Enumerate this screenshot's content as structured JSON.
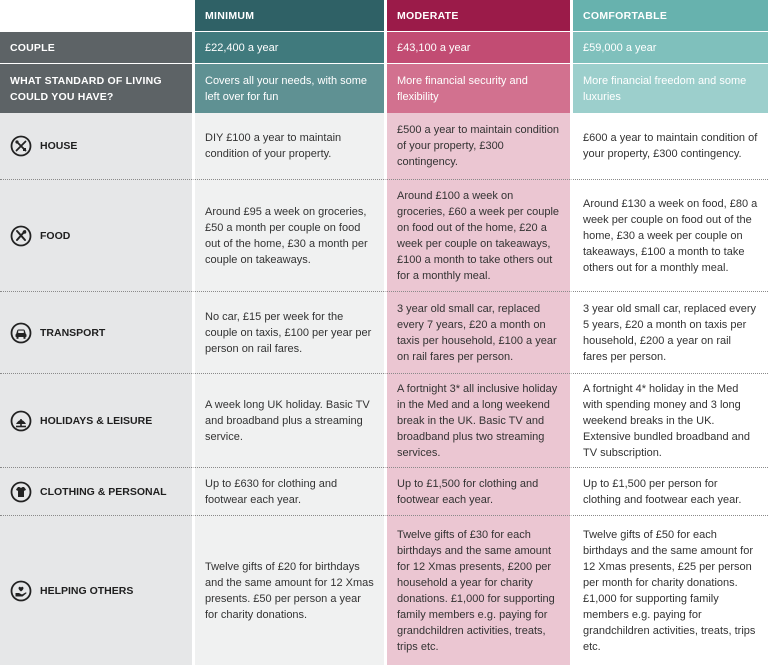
{
  "headers": {
    "minimum": "MINIMUM",
    "moderate": "MODERATE",
    "comfortable": "COMFORTABLE"
  },
  "couple": {
    "label": "COUPLE",
    "minimum": "£22,400 a year",
    "moderate": "£43,100 a year",
    "comfortable": "£59,000 a year"
  },
  "standard": {
    "label_line1": "WHAT STANDARD OF LIVING",
    "label_line2": "COULD YOU HAVE?",
    "minimum": "Covers all your needs, with some left over for fun",
    "moderate": "More financial security and flexibility",
    "comfortable": "More financial freedom and some luxuries"
  },
  "rows": [
    {
      "label": "HOUSE",
      "icon": "house-tools-icon",
      "minimum": "DIY £100 a year to maintain condition of your property.",
      "moderate": "£500 a year to maintain condition of your property, £300 contingency.",
      "comfortable": "£600 a year to maintain condition of your property, £300 contingency."
    },
    {
      "label": "FOOD",
      "icon": "cutlery-icon",
      "minimum": "Around £95 a week on groceries, £50 a month per couple on food out of the home, £30 a month per couple on takeaways.",
      "moderate": "Around £100 a week on groceries, £60 a week per couple on food out of the home, £20 a week per couple on takeaways, £100 a month to take others out for a monthly meal.",
      "comfortable": "Around £130 a week on food, £80 a week per couple on food out of the home, £30 a week per couple on takeaways, £100 a month to take others out for a monthly meal."
    },
    {
      "label": "TRANSPORT",
      "icon": "car-icon",
      "minimum": "No car, £15 per week for the couple on taxis, £100 per year per person on rail fares.",
      "moderate": "3 year old small car, replaced every 7 years, £20 a month on taxis per household, £100 a year on rail fares per person.",
      "comfortable": "3 year old small car, replaced every 5 years, £20 a month on taxis per household, £200 a year on rail fares per person."
    },
    {
      "label": "HOLIDAYS & LEISURE",
      "icon": "holiday-icon",
      "minimum": "A week long UK holiday. Basic TV and broadband plus a streaming service.",
      "moderate": "A fortnight 3* all inclusive holiday in the Med and a long weekend break in the UK. Basic TV and broadband plus two streaming services.",
      "comfortable": "A fortnight 4* holiday in the Med with spending money and 3 long weekend breaks in the UK. Extensive bundled broadband and TV subscription."
    },
    {
      "label": "CLOTHING & PERSONAL",
      "icon": "clothing-icon",
      "minimum": "Up to £630 for clothing and footwear each year.",
      "moderate": "Up to £1,500 for clothing and footwear each year.",
      "comfortable": "Up to £1,500 per person for clothing and footwear each year."
    },
    {
      "label": "HELPING OTHERS",
      "icon": "helping-hand-icon",
      "minimum": "Twelve gifts of £20 for birthdays and the same amount for 12 Xmas presents. £50 per person a year for charity donations.",
      "moderate": "Twelve gifts of £30 for each birthdays and the same amount for 12 Xmas presents, £200 per household a year for charity donations. £1,000 for supporting family members e.g. paying for grandchildren activities, treats, trips etc.",
      "comfortable": "Twelve gifts of £50 for each birthdays and the same amount for 12 Xmas presents, £25 per person per month for charity donations. £1,000 for supporting family members e.g. paying for grandchildren activities, treats, trips etc."
    }
  ]
}
